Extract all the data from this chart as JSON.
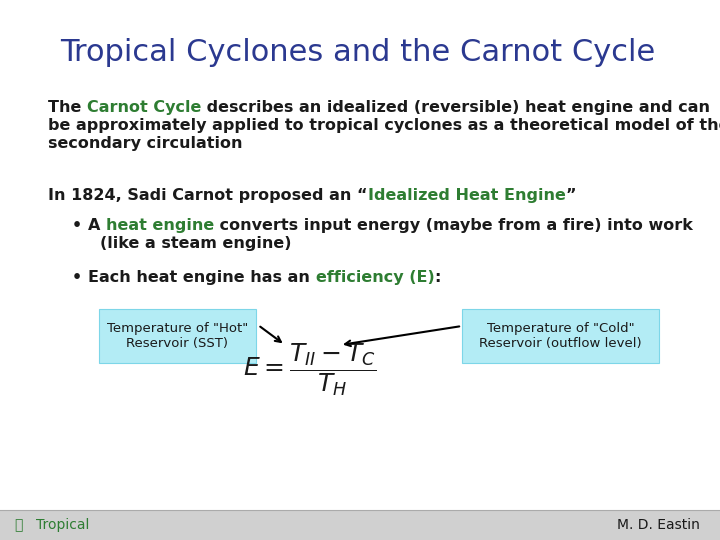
{
  "title": "Tropical Cyclones and the Carnot Cycle",
  "title_color": "#2B3990",
  "title_fontsize": 22,
  "background_color": "#ffffff",
  "text_color": "#1a1a1a",
  "green_color": "#2E7D32",
  "body_fontsize": 11.5,
  "footer_left": "Tropical",
  "footer_right": "M. D. Eastin",
  "footer_color": "#2E7D32",
  "footer_bg": "#d0d0d0",
  "box_color": "#b3ecf5",
  "box_edge_color": "#7dd6e8",
  "formula_fontsize": 18
}
